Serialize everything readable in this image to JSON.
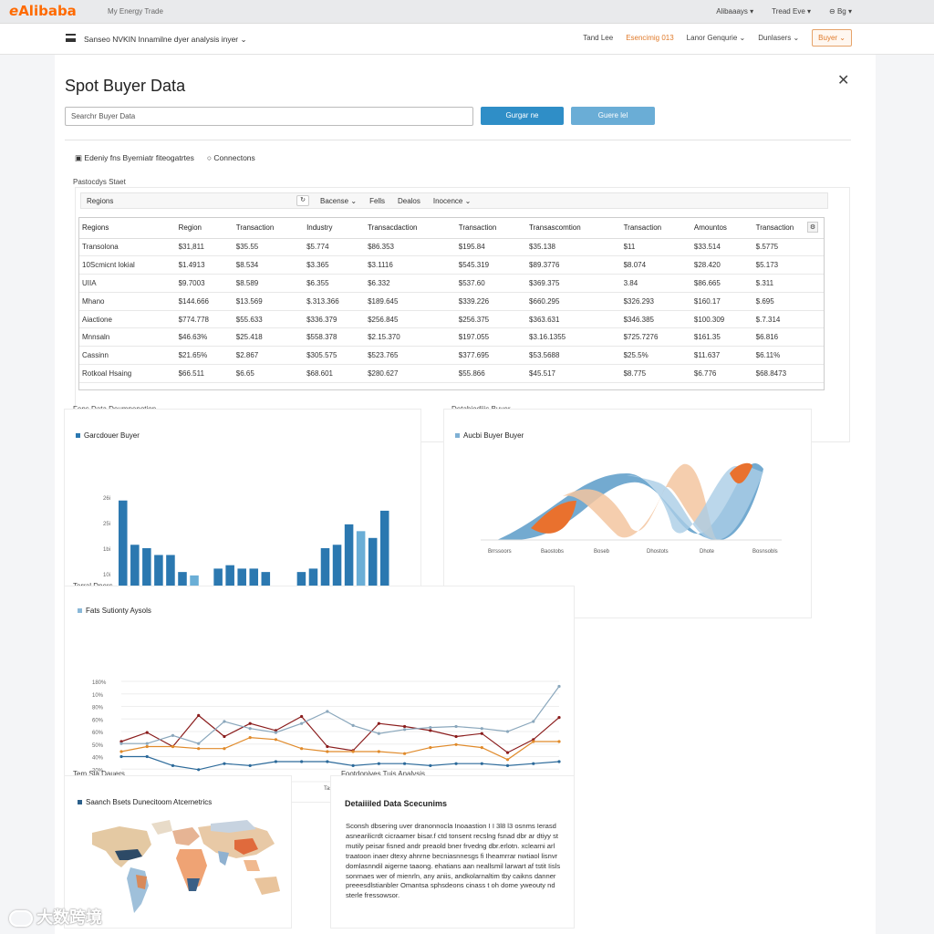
{
  "topbar": {
    "logo": "Alibaba",
    "nav": "My Energy Trade",
    "right": [
      "Alibaaays",
      "Tread Eve",
      "Bg"
    ]
  },
  "subbar": {
    "title": "Sanseo NVKIN Innamilne dyer analysis inyer",
    "right": [
      "Tand Lee",
      "Esencimig 013",
      "Lanor Genqurie",
      "Dunlasers"
    ],
    "buyer": "Buyer"
  },
  "page": {
    "title": "Spot Buyer Data",
    "search_placeholder": "Searchr Buyer Data",
    "btn_primary": "Gurgar ne",
    "btn_secondary": "Guere lel"
  },
  "filters": [
    "Edeniy fns Byerniatr fiteogatrtes",
    "Connectons"
  ],
  "table_section_label": "Pastocdys Staet",
  "table_toolbar": {
    "left": "Regions",
    "right": [
      "Bacense",
      "Fells",
      "Dealos",
      "Inocence"
    ]
  },
  "table": {
    "headers": [
      "Regions",
      "Region",
      "Transaction",
      "Industry",
      "Transacdaction",
      "Transaction",
      "Transascomtion",
      "Transaction",
      "Amountos",
      "Transaction"
    ],
    "rows": [
      [
        "Transolona",
        "$31,811",
        "$35.55",
        "$5.774",
        "$86.353",
        "$195.84",
        "$35.138",
        "$11",
        "$33.514",
        "$.5775"
      ],
      [
        "10Scmicnt lokial",
        "$1.4913",
        "$8.534",
        "$3.365",
        "$3.1116",
        "$545.319",
        "$89.3776",
        "$8.074",
        "$28.420",
        "$5.173"
      ],
      [
        "UIIA",
        "$9.7003",
        "$8.589",
        "$6.355",
        "$6.332",
        "$537.60",
        "$369.375",
        "3.84",
        "$86.665",
        "$.311"
      ],
      [
        "Mhano",
        "$144.666",
        "$13.569",
        "$.313.366",
        "$189.645",
        "$339.226",
        "$660.295",
        "$326.293",
        "$160.17",
        "$.695"
      ],
      [
        "Aiactione",
        "$774.778",
        "$55.633",
        "$336.379",
        "$256.845",
        "$256.375",
        "$363.631",
        "$346.385",
        "$100.309",
        "$.7.314"
      ],
      [
        "Mnnsaln",
        "$46.63%",
        "$25.418",
        "$558.378",
        "$2.15.370",
        "$197.055",
        "$3.16.1355",
        "$725.7276",
        "$161.35",
        "$6.816"
      ],
      [
        "Cassinn",
        "$21.65%",
        "$2.867",
        "$305.575",
        "$523.765",
        "$377.695",
        "$53.5688",
        "$25.5%",
        "$11.637",
        "$6.11%"
      ],
      [
        "Rotkoal Hsaing",
        "$66.511",
        "$6.65",
        "$68.601",
        "$280.627",
        "$55.866",
        "$45.517",
        "$8.775",
        "$6.776",
        "$68.8473"
      ]
    ]
  },
  "bar_section": {
    "label": "Fens Data Deumpenotion",
    "legend": "Garcdouer Buyer"
  },
  "wave_section": {
    "label": "Detahiodiiis Buyer",
    "legend": "Aucbi Buyer Buyer"
  },
  "line_section": {
    "label": "Terral Dners",
    "legend": "Fats Sutionty Aysols"
  },
  "map_section": {
    "label": "Tem Sia Dauers",
    "legend": "Saanch Bsets Dunecitoom Atcernetrics"
  },
  "detail_section": {
    "label": "Footdonives Tuis Analysis",
    "title": "Detaiiiled Data Scecunims",
    "text": "Sconsh dbsering uver dranonnocla Inoaastion I I 3l8 l3 osnms Ierasd asnearilicrdt cicraamer bisar.f ctd tonsent recslng fsnad dbr ar dtiyy st mutily peisar fisned andr preaold bner frvedng dbr.erlotn. xclearni arl traatoon inaer dtexy ahnrne becniasnnesgs fi Iheamrrar nwtiaol lisnvr domlasnndil aigerne taaong. ehatians aan neallsmil larwart af tstit Iisls sonrnaes wer of mienrln, any aniis, andkolarnaltim tby caikns danner preeesdlstianbler Omantsa sphsdeons cinass t oh dome yweouty nd sterle fressowsor."
  },
  "chart_data": [
    {
      "type": "bar",
      "title": "Garcdouer Buyer",
      "yticks": [
        "0",
        "10i",
        "1bi",
        "25i",
        "26i"
      ],
      "xticks": [
        "Ssrdsl",
        "Rosdtwtmers",
        "Rdpgest",
        "Ssnsnsest",
        "Rosdtcnrters"
      ],
      "series": [
        {
          "values": [
            29,
            16,
            15,
            13,
            13,
            8,
            7,
            3,
            9,
            10,
            9,
            9,
            8,
            3,
            3,
            8,
            9,
            15,
            16,
            22,
            20,
            18,
            26
          ],
          "highlighted_indices": [
            6,
            20
          ]
        }
      ]
    },
    {
      "type": "area",
      "title": "Aucbi Buyer Buyer",
      "xticks": [
        "Brrssoors",
        "Baostobs",
        "Boseb",
        "Dhostots",
        "Dhote",
        "Bosnsobls"
      ]
    },
    {
      "type": "line",
      "title": "Fats Sutionty Aysols",
      "yticks": [
        "No",
        "20%",
        "40%",
        "50%",
        "60%",
        "60%",
        "80%",
        "10%",
        "180%"
      ],
      "xticks": [
        "Fab",
        "Taasa",
        "Tasgaha",
        "Tassan",
        "Dasinsda"
      ],
      "series": [
        {
          "color": "#8a1c1c",
          "values": [
            40,
            49,
            35,
            66,
            45,
            58,
            51,
            65,
            35,
            31,
            58,
            55,
            51,
            45,
            48,
            29,
            42,
            64
          ]
        },
        {
          "color": "#e08a2a",
          "values": [
            30,
            35,
            35,
            33,
            33,
            44,
            42,
            33,
            30,
            30,
            30,
            28,
            34,
            37,
            34,
            22,
            40,
            40
          ]
        },
        {
          "color": "#8aa7bc",
          "values": [
            38,
            38,
            46,
            38,
            60,
            53,
            49,
            58,
            70,
            56,
            48,
            52,
            54,
            55,
            53,
            50,
            60,
            95
          ]
        },
        {
          "color": "#2c6a9a",
          "values": [
            25,
            25,
            16,
            12,
            18,
            16,
            20,
            20,
            20,
            16,
            18,
            18,
            16,
            18,
            18,
            16,
            18,
            20
          ]
        }
      ]
    }
  ],
  "watermark": "大数跨境"
}
